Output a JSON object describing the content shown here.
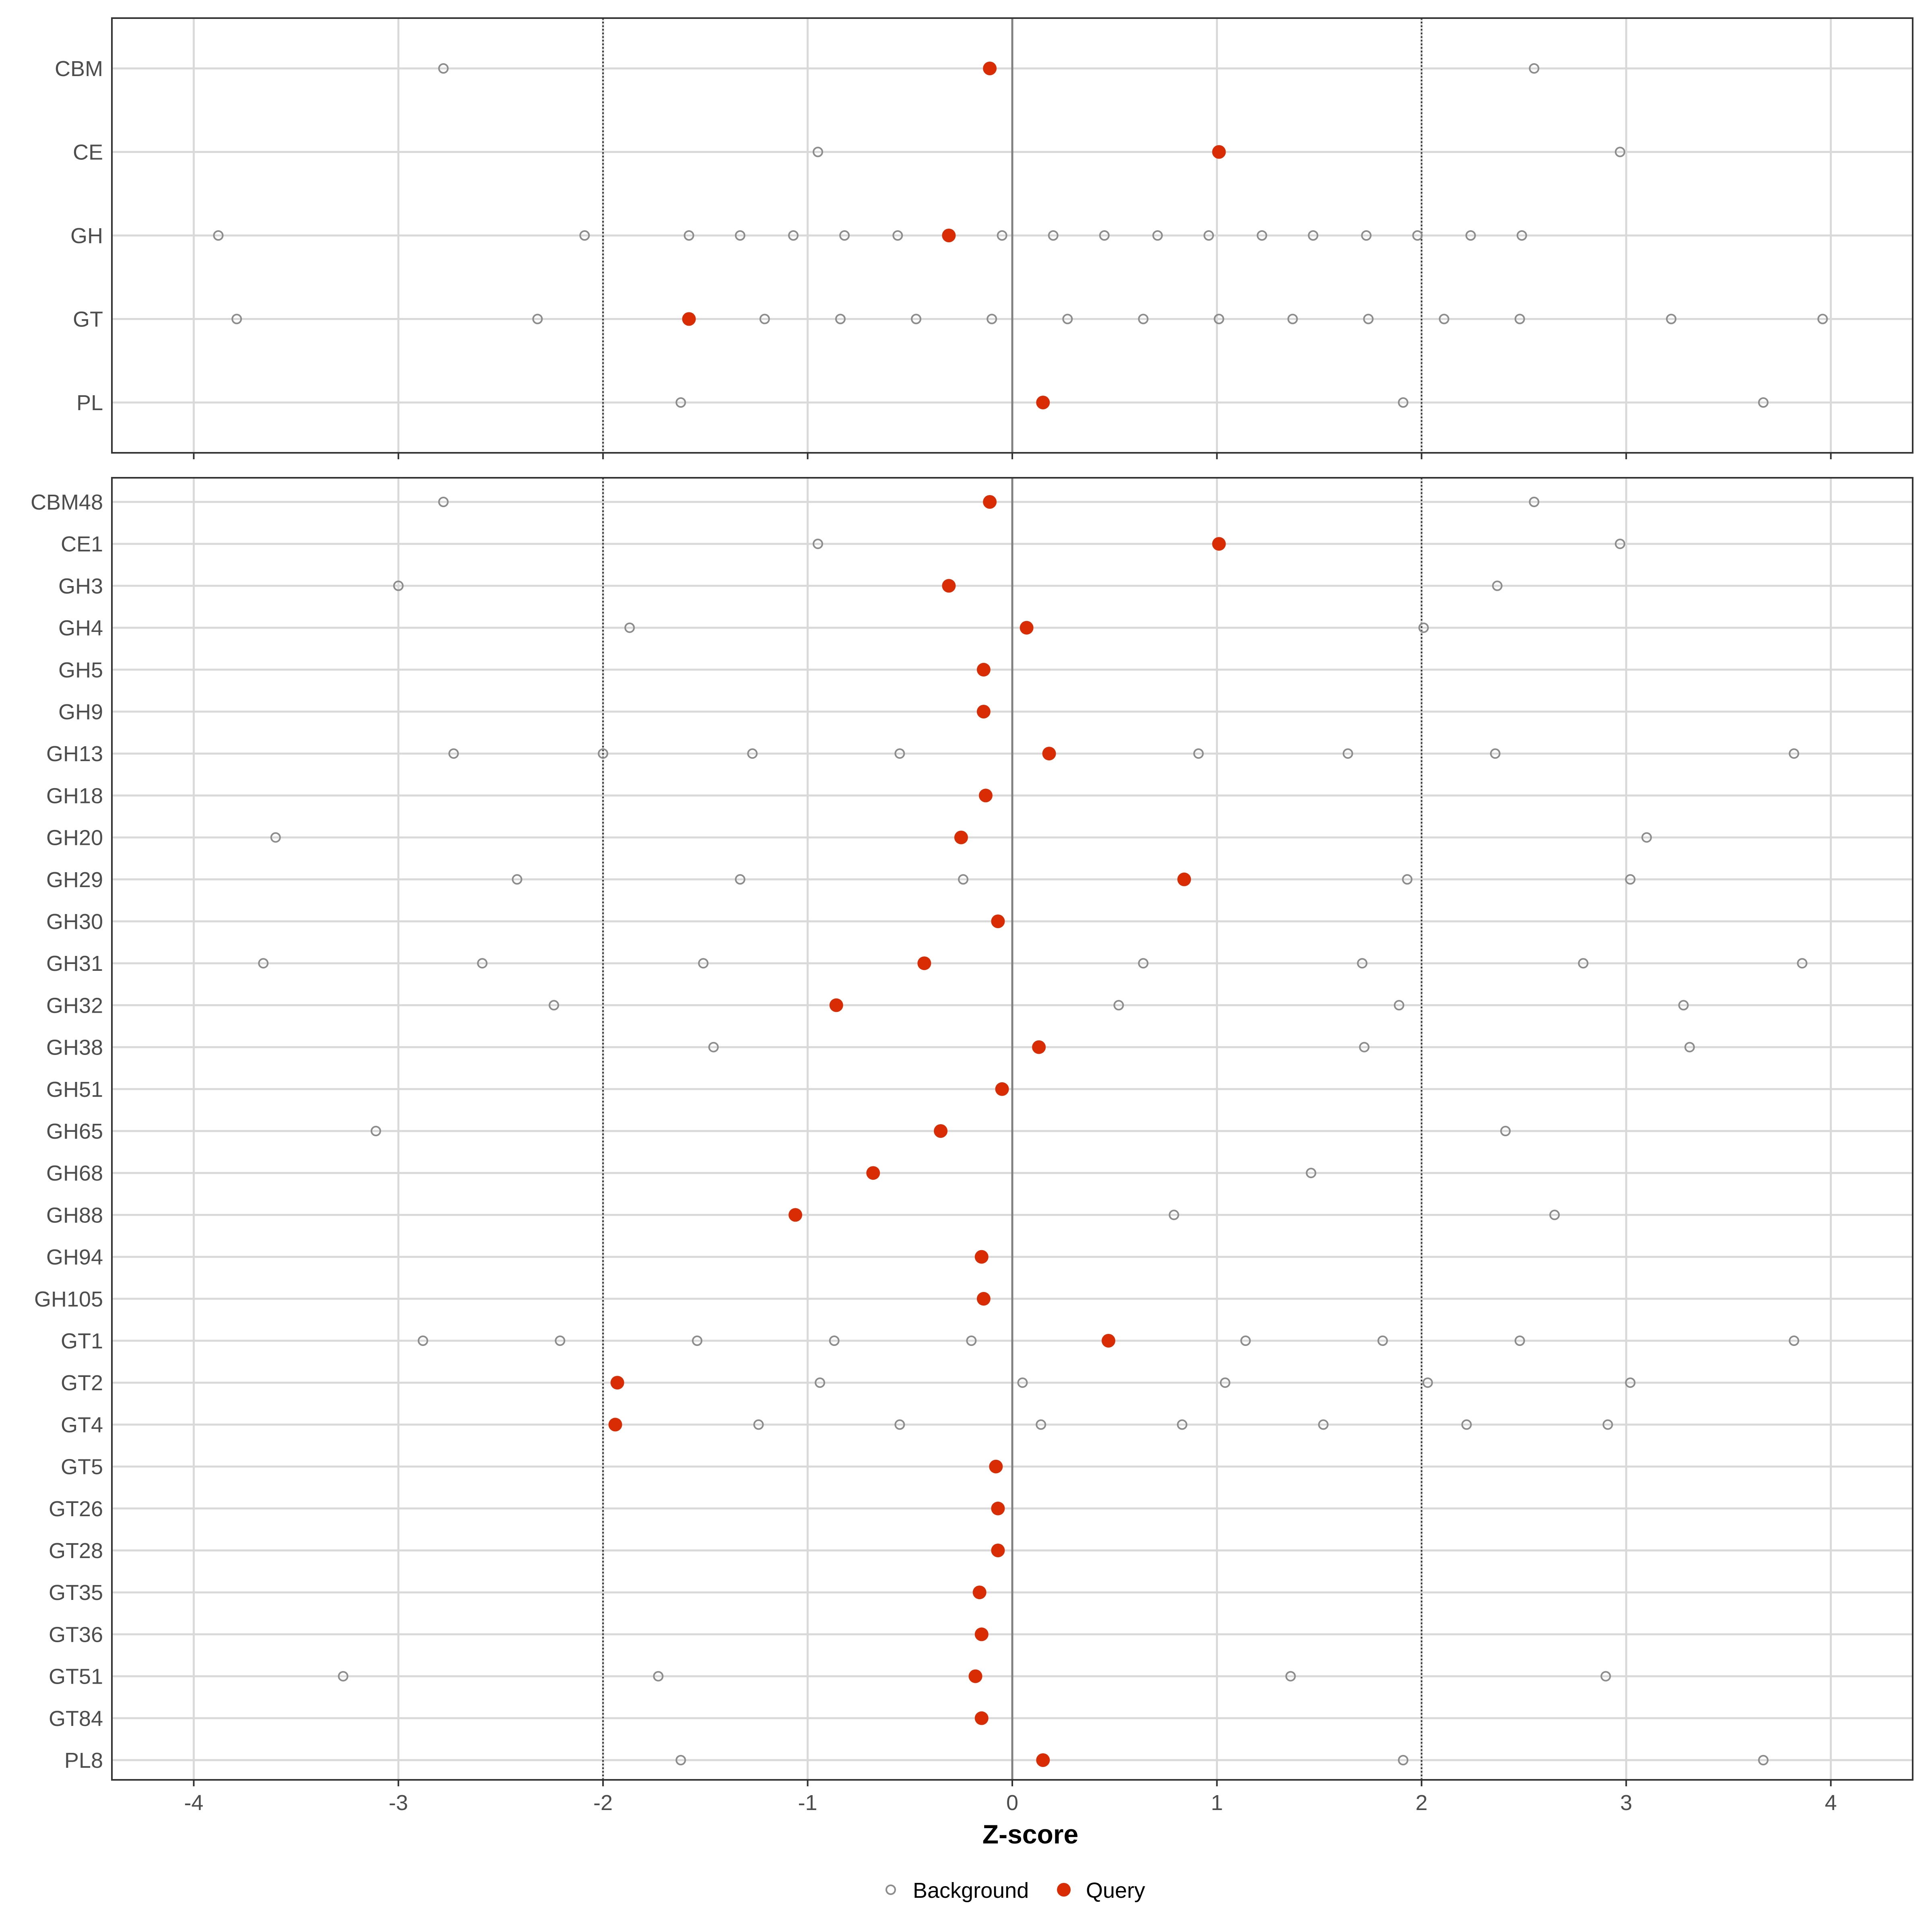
{
  "chart_data": {
    "type": "scatter",
    "xlabel": "Z-score",
    "xlim": [
      -4.4,
      4.4
    ],
    "x_ticks": [
      -4,
      -3,
      -2,
      -1,
      0,
      1,
      2,
      3,
      4
    ],
    "x_tick_labels": [
      "-4",
      "-3",
      "-2",
      "-1",
      "0",
      "1",
      "2",
      "3",
      "4"
    ],
    "reference_lines": {
      "solid": [
        0
      ],
      "dotted": [
        -2,
        2
      ]
    },
    "grid": true,
    "legend": {
      "position": "bottom",
      "entries": [
        {
          "label": "Background",
          "color": "#8c8c8c",
          "marker": "open-circle"
        },
        {
          "label": "Query",
          "color": "#d92b04",
          "marker": "filled-circle"
        }
      ]
    },
    "panels": [
      {
        "name": "top",
        "categories": [
          {
            "label": "CBM",
            "query": -0.11,
            "background": [
              -2.78,
              2.55
            ]
          },
          {
            "label": "CE",
            "query": 1.01,
            "background": [
              -0.95,
              2.97
            ]
          },
          {
            "label": "GH",
            "query": -0.31,
            "background": [
              -3.88,
              -2.09,
              -1.58,
              -1.33,
              -1.07,
              -0.82,
              -0.56,
              -0.05,
              0.2,
              0.45,
              0.71,
              0.96,
              1.22,
              1.47,
              1.73,
              1.98,
              2.24,
              2.49
            ]
          },
          {
            "label": "GT",
            "query": -1.58,
            "background": [
              -3.79,
              -2.32,
              -1.21,
              -0.84,
              -0.47,
              -0.1,
              0.27,
              0.64,
              1.01,
              1.37,
              1.74,
              2.11,
              2.48,
              3.22,
              3.96
            ]
          },
          {
            "label": "PL",
            "query": 0.15,
            "background": [
              -1.62,
              1.91,
              3.67
            ]
          }
        ]
      },
      {
        "name": "bottom",
        "categories": [
          {
            "label": "CBM48",
            "query": -0.11,
            "background": [
              -2.78,
              2.55
            ]
          },
          {
            "label": "CE1",
            "query": 1.01,
            "background": [
              -0.95,
              2.97
            ]
          },
          {
            "label": "GH3",
            "query": -0.31,
            "background": [
              -3.0,
              2.37
            ]
          },
          {
            "label": "GH4",
            "query": 0.07,
            "background": [
              -1.87,
              2.01
            ]
          },
          {
            "label": "GH5",
            "query": -0.14,
            "background": []
          },
          {
            "label": "GH9",
            "query": -0.14,
            "background": []
          },
          {
            "label": "GH13",
            "query": 0.18,
            "background": [
              -2.73,
              -2.0,
              -1.27,
              -0.55,
              0.91,
              1.64,
              2.36,
              3.82
            ]
          },
          {
            "label": "GH18",
            "query": -0.13,
            "background": []
          },
          {
            "label": "GH20",
            "query": -0.25,
            "background": [
              -3.6,
              3.1
            ]
          },
          {
            "label": "GH29",
            "query": 0.84,
            "background": [
              -2.42,
              -1.33,
              -0.24,
              1.93,
              3.02
            ]
          },
          {
            "label": "GH30",
            "query": -0.07,
            "background": []
          },
          {
            "label": "GH31",
            "query": -0.43,
            "background": [
              -3.66,
              -2.59,
              -1.51,
              0.64,
              1.71,
              2.79,
              3.86
            ]
          },
          {
            "label": "GH32",
            "query": -0.86,
            "background": [
              -2.24,
              0.52,
              1.89,
              3.28
            ]
          },
          {
            "label": "GH38",
            "query": 0.13,
            "background": [
              -1.46,
              1.72,
              3.31
            ]
          },
          {
            "label": "GH51",
            "query": -0.05,
            "background": []
          },
          {
            "label": "GH65",
            "query": -0.35,
            "background": [
              -3.11,
              2.41
            ]
          },
          {
            "label": "GH68",
            "query": -0.68,
            "background": [
              1.46
            ]
          },
          {
            "label": "GH88",
            "query": -1.06,
            "background": [
              0.79,
              2.65
            ]
          },
          {
            "label": "GH94",
            "query": -0.15,
            "background": []
          },
          {
            "label": "GH105",
            "query": -0.14,
            "background": []
          },
          {
            "label": "GT1",
            "query": 0.47,
            "background": [
              -2.88,
              -2.21,
              -1.54,
              -0.87,
              -0.2,
              1.14,
              1.81,
              2.48,
              3.82
            ]
          },
          {
            "label": "GT2",
            "query": -1.93,
            "background": [
              -0.94,
              0.05,
              1.04,
              2.03,
              3.02
            ]
          },
          {
            "label": "GT4",
            "query": -1.94,
            "background": [
              -1.24,
              -0.55,
              0.14,
              0.83,
              1.52,
              2.22,
              2.91
            ]
          },
          {
            "label": "GT5",
            "query": -0.08,
            "background": []
          },
          {
            "label": "GT26",
            "query": -0.07,
            "background": []
          },
          {
            "label": "GT28",
            "query": -0.07,
            "background": []
          },
          {
            "label": "GT35",
            "query": -0.16,
            "background": []
          },
          {
            "label": "GT36",
            "query": -0.15,
            "background": []
          },
          {
            "label": "GT51",
            "query": -0.18,
            "background": [
              -3.27,
              -1.73,
              1.36,
              2.9
            ]
          },
          {
            "label": "GT84",
            "query": -0.15,
            "background": []
          },
          {
            "label": "PL8",
            "query": 0.15,
            "background": [
              -1.62,
              1.91,
              3.67
            ]
          }
        ]
      }
    ]
  }
}
